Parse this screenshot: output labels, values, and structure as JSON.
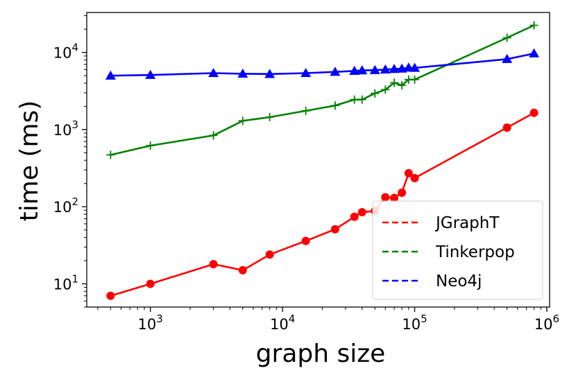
{
  "chart_data": {
    "type": "line",
    "title": "",
    "xlabel": "graph size",
    "ylabel": "time (ms)",
    "xscale": "log",
    "yscale": "log",
    "xlim": [
      330,
      1050000
    ],
    "ylim": [
      5,
      33000
    ],
    "grid": false,
    "legend_position": "lower-right",
    "x_ticks": [
      {
        "value": 1000,
        "base": "10",
        "exp": "3"
      },
      {
        "value": 10000,
        "base": "10",
        "exp": "4"
      },
      {
        "value": 100000,
        "base": "10",
        "exp": "5"
      },
      {
        "value": 1000000,
        "base": "10",
        "exp": "6"
      }
    ],
    "y_ticks": [
      {
        "value": 10,
        "base": "10",
        "exp": "1"
      },
      {
        "value": 100,
        "base": "10",
        "exp": "2"
      },
      {
        "value": 1000,
        "base": "10",
        "exp": "3"
      },
      {
        "value": 10000,
        "base": "10",
        "exp": "4"
      }
    ],
    "series": [
      {
        "name": "JGraphT",
        "color": "#ff0000",
        "marker": "circle",
        "x": [
          500,
          1000,
          3000,
          5000,
          8000,
          15000,
          25000,
          35000,
          40000,
          50000,
          60000,
          70000,
          80000,
          90000,
          100000,
          500000,
          800000
        ],
        "y": [
          7,
          10,
          18,
          15,
          24,
          36,
          51,
          74,
          85,
          88,
          133,
          130,
          152,
          272,
          235,
          1060,
          1650
        ]
      },
      {
        "name": "Tinkerpop",
        "color": "#008000",
        "marker": "plus",
        "x": [
          500,
          1000,
          3000,
          5000,
          8000,
          15000,
          25000,
          35000,
          40000,
          50000,
          60000,
          70000,
          80000,
          90000,
          100000,
          500000,
          800000
        ],
        "y": [
          470,
          620,
          840,
          1300,
          1450,
          1750,
          2050,
          2450,
          2450,
          2950,
          3300,
          4050,
          3750,
          4450,
          4450,
          15500,
          22500
        ]
      },
      {
        "name": "Neo4j",
        "color": "#0000ff",
        "marker": "triangle",
        "x": [
          500,
          1000,
          3000,
          5000,
          8000,
          15000,
          25000,
          35000,
          40000,
          50000,
          60000,
          70000,
          80000,
          90000,
          100000,
          500000,
          800000
        ],
        "y": [
          5000,
          5100,
          5400,
          5300,
          5250,
          5400,
          5600,
          5750,
          5850,
          5900,
          6000,
          6100,
          6150,
          6350,
          6300,
          8200,
          9700
        ]
      }
    ]
  }
}
